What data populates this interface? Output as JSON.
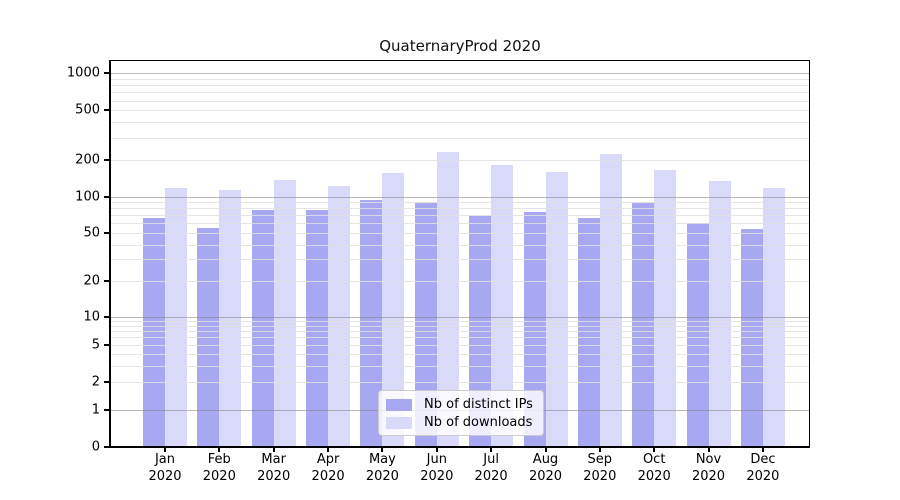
{
  "chart_data": {
    "type": "bar",
    "title": "QuaternaryProd 2020",
    "categories": [
      "Jan 2020",
      "Feb 2020",
      "Mar 2020",
      "Apr 2020",
      "May 2020",
      "Jun 2020",
      "Jul 2020",
      "Aug 2020",
      "Sep 2020",
      "Oct 2020",
      "Nov 2020",
      "Dec 2020"
    ],
    "series": [
      {
        "name": "Nb of distinct IPs",
        "color": "#a8a8f2",
        "values": [
          66,
          55,
          78,
          78,
          94,
          89,
          69,
          75,
          66,
          88,
          60,
          54
        ]
      },
      {
        "name": "Nb of downloads",
        "color": "#d9d9f9",
        "values": [
          117,
          114,
          137,
          122,
          157,
          230,
          180,
          158,
          222,
          165,
          135,
          117
        ]
      }
    ],
    "yscale": "symlog",
    "ylim": [
      0,
      1300
    ],
    "yticks": [
      {
        "value": 1000,
        "label": "1000"
      },
      {
        "value": 500,
        "label": "500"
      },
      {
        "value": 200,
        "label": "200"
      },
      {
        "value": 100,
        "label": "100"
      },
      {
        "value": 50,
        "label": "50"
      },
      {
        "value": 20,
        "label": "20"
      },
      {
        "value": 10,
        "label": "10"
      },
      {
        "value": 5,
        "label": "5"
      },
      {
        "value": 2,
        "label": "2"
      },
      {
        "value": 1,
        "label": "1"
      },
      {
        "value": 0,
        "label": "0"
      }
    ],
    "grid": true,
    "legend_position": "lower-center"
  },
  "colors": {
    "distinct_ips": "#a8a8f2",
    "downloads": "#d9d9f9",
    "major_gridline": "#8c8c8c",
    "minor_gridline": "#e1e1e1",
    "spine": "#000000"
  }
}
